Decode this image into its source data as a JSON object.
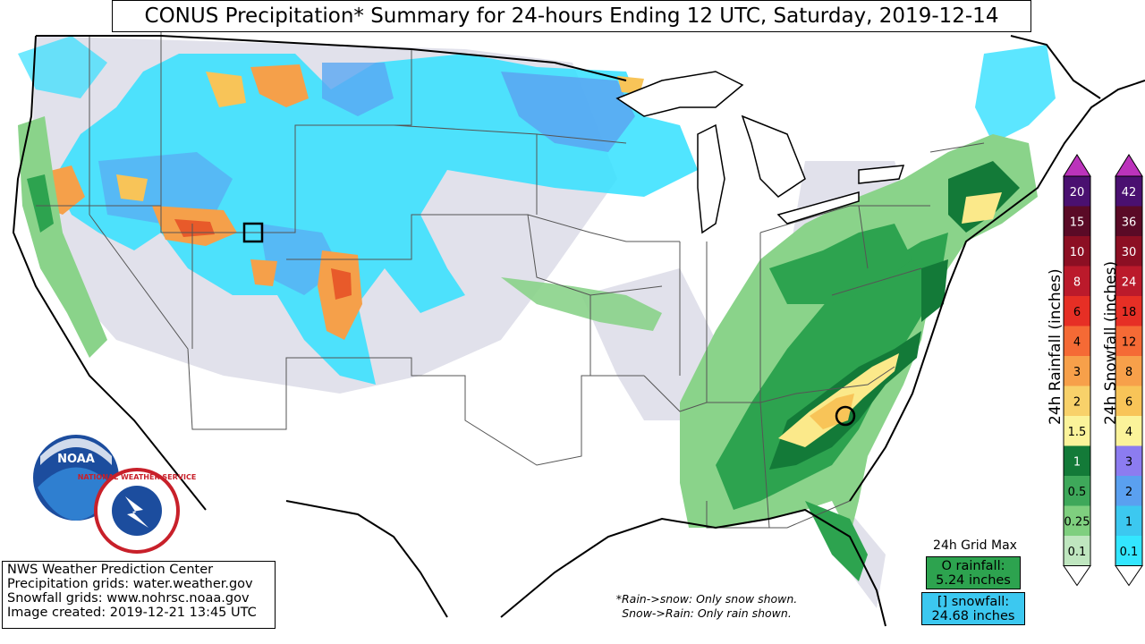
{
  "title": "CONUS Precipitation* Summary for 24-hours Ending 12 UTC, Saturday, 2019-12-14",
  "credits": [
    "NWS Weather Prediction Center",
    "Precipitation grids: water.weather.gov",
    "Snowfall grids: www.nohrsc.noaa.gov",
    "Image created: 2019-12-21 13:45 UTC"
  ],
  "notes": [
    "*Rain->snow: Only snow shown.",
    "Snow->Rain: Only rain shown."
  ],
  "grid_max": {
    "label": "24h Grid Max",
    "rain_label": "O rainfall:",
    "rain_value": "5.24 inches",
    "snow_label": "[] snowfall:",
    "snow_value": "24.68 inches"
  },
  "rain_scale": {
    "title": "24h Rainfall (inches)",
    "levels": [
      "0.1",
      "0.25",
      "0.5",
      "1",
      "1.5",
      "2",
      "3",
      "4",
      "6",
      "8",
      "10",
      "15",
      "20"
    ],
    "colors": [
      "#bfe6bf",
      "#7fcf7f",
      "#3ea85a",
      "#137a38",
      "#fbf39a",
      "#f8d16a",
      "#f7a04a",
      "#f56a35",
      "#e62f25",
      "#bb1a2b",
      "#8c0f23",
      "#5a0a26",
      "#4a1070"
    ],
    "cap_color": "#bb33bb"
  },
  "snow_scale": {
    "title": "24h Snowfall (inches)",
    "levels": [
      "0.1",
      "1",
      "2",
      "3",
      "4",
      "6",
      "8",
      "12",
      "18",
      "24",
      "30",
      "36",
      "42"
    ],
    "colors": [
      "#33e6ff",
      "#3cc8f0",
      "#5aa0f0",
      "#8c7cf0",
      "#fbf39a",
      "#f8c458",
      "#f7a04a",
      "#f56a35",
      "#e62f25",
      "#bb1a2b",
      "#8c0f23",
      "#5a0a26",
      "#4a1070"
    ],
    "cap_color": "#bb33bb"
  },
  "logos": {
    "noaa": "NOAA",
    "nws": "NATIONAL WEATHER SERVICE"
  },
  "map_colors": {
    "snow_light": "#30e0ff",
    "snow_mid": "#5aa8f2",
    "snow_heavy": "#f5a04a",
    "rain_light": "#8ad38a",
    "rain_mid": "#2da34f",
    "rain_dark": "#137a38",
    "rain_heavy": "#fbe98a",
    "trace": "#dddde8",
    "border": "#000000"
  }
}
